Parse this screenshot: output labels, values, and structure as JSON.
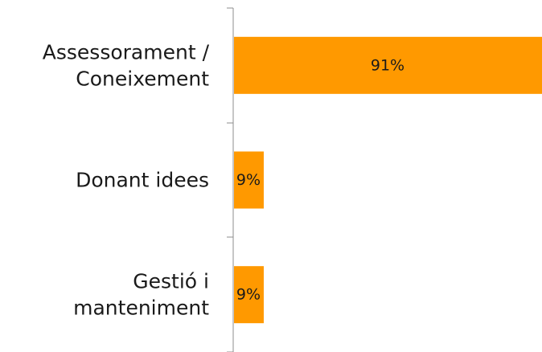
{
  "chart_data": {
    "type": "bar",
    "orientation": "horizontal",
    "title": "",
    "xlabel": "",
    "ylabel": "",
    "categories": [
      [
        "Assessorament /",
        "Coneixement"
      ],
      [
        "Donant idees"
      ],
      [
        "Gestió i",
        "manteniment"
      ]
    ],
    "values": [
      91,
      9,
      9
    ],
    "value_labels": [
      "91%",
      "9%",
      "9%"
    ],
    "xlim": [
      0,
      91
    ],
    "grid": false,
    "legend": "none",
    "bar_color": "#FF9900"
  }
}
